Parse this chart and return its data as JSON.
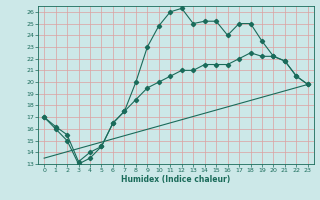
{
  "xlabel": "Humidex (Indice chaleur)",
  "xlim": [
    -0.5,
    23.5
  ],
  "ylim": [
    13,
    26.5
  ],
  "xticks": [
    0,
    1,
    2,
    3,
    4,
    5,
    6,
    7,
    8,
    9,
    10,
    11,
    12,
    13,
    14,
    15,
    16,
    17,
    18,
    19,
    20,
    21,
    22,
    23
  ],
  "yticks": [
    13,
    14,
    15,
    16,
    17,
    18,
    19,
    20,
    21,
    22,
    23,
    24,
    25,
    26
  ],
  "bg_color": "#cce8e8",
  "grid_color": "#dda0a0",
  "line_color": "#1a6b5a",
  "line1_x": [
    0,
    1,
    2,
    3,
    4,
    5,
    6,
    7,
    8,
    9,
    10,
    11,
    12,
    13,
    14,
    15,
    16,
    17,
    18,
    19,
    20,
    21,
    22,
    23
  ],
  "line1_y": [
    17,
    16,
    15,
    13,
    13.5,
    14.5,
    16.5,
    17.5,
    20,
    23,
    24.8,
    26,
    26.3,
    25,
    25.2,
    25.2,
    24,
    25,
    25,
    23.5,
    22.2,
    21.8,
    20.5,
    19.8
  ],
  "line2_x": [
    0,
    1,
    2,
    3,
    4,
    5,
    6,
    7,
    8,
    9,
    10,
    11,
    12,
    13,
    14,
    15,
    16,
    17,
    18,
    19,
    20,
    21,
    22,
    23
  ],
  "line2_y": [
    17,
    16.2,
    15.5,
    13.2,
    14.0,
    14.5,
    16.5,
    17.5,
    18.5,
    19.5,
    20.0,
    20.5,
    21.0,
    21.0,
    21.5,
    21.5,
    21.5,
    22.0,
    22.5,
    22.2,
    22.2,
    21.8,
    20.5,
    19.8
  ],
  "line3_x": [
    0,
    23
  ],
  "line3_y": [
    13.5,
    19.8
  ],
  "font_color": "#1a6b5a"
}
